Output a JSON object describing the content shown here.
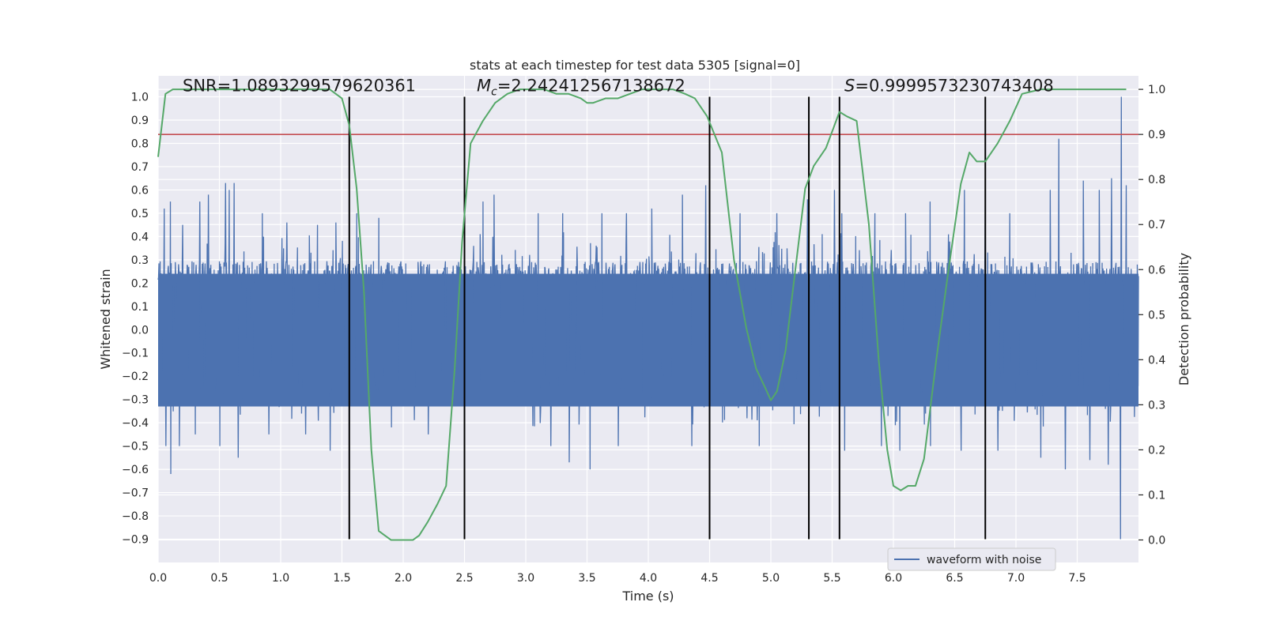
{
  "chart_data": {
    "type": "line",
    "title": "stats at each timestep for test data 5305 [signal=0]",
    "xlabel": "Time (s)",
    "ylabel": "Whitened strain",
    "y2label": "Detection probability",
    "xlim": [
      0,
      8.0
    ],
    "ylim": [
      -1.0,
      1.09
    ],
    "y2lim": [
      -0.05,
      1.03
    ],
    "x_ticks": [
      0.0,
      0.5,
      1.0,
      1.5,
      2.0,
      2.5,
      3.0,
      3.5,
      4.0,
      4.5,
      5.0,
      5.5,
      6.0,
      6.5,
      7.0,
      7.5
    ],
    "x_tick_labels": [
      "0.0",
      "0.5",
      "1.0",
      "1.5",
      "2.0",
      "2.5",
      "3.0",
      "3.5",
      "4.0",
      "4.5",
      "5.0",
      "5.5",
      "6.0",
      "6.5",
      "7.0",
      "7.5"
    ],
    "y_ticks": [
      -0.9,
      -0.8,
      -0.7,
      -0.6,
      -0.5,
      -0.4,
      -0.3,
      -0.2,
      -0.1,
      0.0,
      0.1,
      0.2,
      0.3,
      0.4,
      0.5,
      0.6,
      0.7,
      0.8,
      0.9,
      1.0
    ],
    "y_tick_labels": [
      "−0.9",
      "−0.8",
      "−0.7",
      "−0.6",
      "−0.5",
      "−0.4",
      "−0.3",
      "−0.2",
      "−0.1",
      "0.0",
      "0.1",
      "0.2",
      "0.3",
      "0.4",
      "0.5",
      "0.6",
      "0.7",
      "0.8",
      "0.9",
      "1.0"
    ],
    "y2_ticks": [
      0.0,
      0.1,
      0.2,
      0.3,
      0.4,
      0.5,
      0.6,
      0.7,
      0.8,
      0.9,
      1.0
    ],
    "y2_tick_labels": [
      "0.0",
      "0.1",
      "0.2",
      "0.3",
      "0.4",
      "0.5",
      "0.6",
      "0.7",
      "0.8",
      "0.9",
      "1.0"
    ],
    "grid": true,
    "background_color": "#eaeaf2",
    "annotations": [
      {
        "id": "snr",
        "text": "SNR=1.0893299579620361",
        "x": 0.2,
        "y": 1.03
      },
      {
        "id": "mc",
        "text": "=2.242412567138672",
        "symbol_main": "M",
        "symbol_sub": "c",
        "x": 2.6,
        "y": 1.03
      },
      {
        "id": "s",
        "text": "=0.9999573230743408",
        "symbol_main": "S",
        "x": 5.6,
        "y": 1.03
      }
    ],
    "threshold": {
      "y2": 0.9,
      "color": "#c44e52"
    },
    "vertical_markers": {
      "x": [
        1.56,
        2.5,
        4.5,
        5.31,
        5.56,
        6.75
      ],
      "y_range": [
        -0.9,
        1.0
      ],
      "color": "#000000"
    },
    "series": [
      {
        "name": "waveform with noise",
        "axis": "left",
        "color": "#4c72b0",
        "kind": "noise",
        "x_range": [
          0.0,
          8.0
        ],
        "sample_count": 2400,
        "body_amplitude": 0.28,
        "peak_x": [
          0.05,
          0.1,
          0.2,
          0.34,
          0.41,
          0.55,
          0.58,
          0.62,
          0.85,
          1.05,
          1.3,
          1.45,
          1.62,
          1.8,
          2.65,
          2.74,
          3.1,
          3.3,
          3.62,
          3.82,
          4.03,
          4.28,
          4.47,
          4.75,
          5.05,
          5.3,
          5.52,
          5.58,
          5.85,
          6.1,
          6.3,
          6.58,
          6.75,
          6.95,
          7.28,
          7.35,
          7.55,
          7.68,
          7.78,
          7.86,
          7.9
        ],
        "peak_top": [
          0.52,
          0.55,
          0.45,
          0.55,
          0.58,
          0.63,
          0.6,
          0.63,
          0.5,
          0.46,
          0.45,
          0.46,
          0.5,
          0.48,
          0.55,
          0.58,
          0.5,
          0.5,
          0.5,
          0.5,
          0.52,
          0.58,
          0.62,
          0.5,
          0.5,
          0.56,
          0.6,
          0.5,
          0.5,
          0.5,
          0.55,
          0.6,
          0.55,
          0.5,
          0.6,
          0.82,
          0.64,
          0.6,
          0.65,
          1.0,
          0.62
        ],
        "trough_x": [
          0.06,
          0.1,
          0.17,
          0.3,
          0.5,
          0.65,
          0.9,
          1.2,
          1.4,
          1.9,
          2.2,
          3.2,
          3.35,
          3.52,
          3.75,
          4.35,
          4.9,
          5.6,
          5.9,
          6.05,
          6.3,
          6.55,
          6.85,
          7.2,
          7.4,
          7.6,
          7.75,
          7.85
        ],
        "trough_bottom": [
          -0.5,
          -0.62,
          -0.5,
          -0.45,
          -0.5,
          -0.55,
          -0.45,
          -0.45,
          -0.52,
          -0.42,
          -0.45,
          -0.5,
          -0.57,
          -0.6,
          -0.5,
          -0.5,
          -0.5,
          -0.52,
          -0.5,
          -0.52,
          -0.5,
          -0.52,
          -0.52,
          -0.55,
          -0.6,
          -0.56,
          -0.58,
          -0.9
        ]
      },
      {
        "name": "",
        "axis": "right",
        "color": "#55a868",
        "kind": "line",
        "x": [
          0.0,
          0.06,
          0.12,
          0.25,
          0.5,
          0.8,
          1.0,
          1.2,
          1.4,
          1.5,
          1.56,
          1.62,
          1.68,
          1.74,
          1.8,
          1.85,
          1.9,
          2.0,
          2.08,
          2.13,
          2.2,
          2.28,
          2.35,
          2.42,
          2.48,
          2.55,
          2.65,
          2.75,
          2.85,
          2.95,
          3.05,
          3.15,
          3.25,
          3.35,
          3.45,
          3.5,
          3.55,
          3.65,
          3.75,
          3.85,
          3.95,
          4.05,
          4.2,
          4.3,
          4.38,
          4.48,
          4.6,
          4.7,
          4.8,
          4.88,
          4.95,
          5.0,
          5.05,
          5.12,
          5.2,
          5.28,
          5.35,
          5.45,
          5.56,
          5.62,
          5.7,
          5.8,
          5.88,
          5.95,
          6.0,
          6.06,
          6.12,
          6.18,
          6.25,
          6.35,
          6.45,
          6.55,
          6.62,
          6.68,
          6.75,
          6.85,
          6.95,
          7.05,
          7.2,
          7.5,
          7.7,
          7.9
        ],
        "y": [
          0.85,
          0.99,
          1.0,
          1.0,
          1.0,
          1.0,
          1.0,
          1.0,
          1.0,
          0.98,
          0.92,
          0.78,
          0.55,
          0.2,
          0.02,
          0.01,
          0.0,
          0.0,
          0.0,
          0.01,
          0.04,
          0.08,
          0.12,
          0.38,
          0.66,
          0.88,
          0.93,
          0.97,
          0.99,
          1.0,
          1.0,
          1.0,
          0.99,
          0.99,
          0.98,
          0.97,
          0.97,
          0.98,
          0.98,
          0.99,
          1.0,
          1.0,
          1.0,
          0.99,
          0.98,
          0.94,
          0.86,
          0.62,
          0.47,
          0.38,
          0.34,
          0.31,
          0.33,
          0.42,
          0.6,
          0.78,
          0.83,
          0.87,
          0.95,
          0.94,
          0.93,
          0.7,
          0.4,
          0.2,
          0.12,
          0.11,
          0.12,
          0.12,
          0.18,
          0.4,
          0.6,
          0.79,
          0.86,
          0.84,
          0.84,
          0.88,
          0.93,
          0.99,
          1.0,
          1.0,
          1.0,
          1.0
        ]
      }
    ],
    "legend": {
      "placement": "lower-right",
      "entries": [
        "waveform with noise"
      ]
    }
  }
}
